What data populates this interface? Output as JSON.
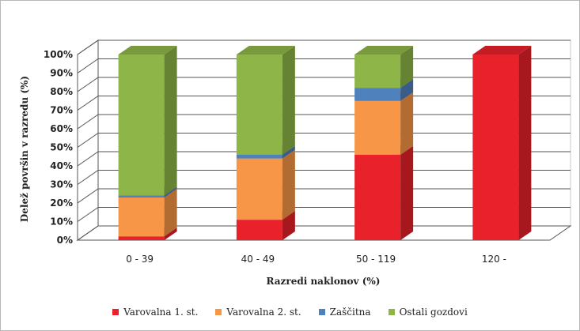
{
  "chart_data": {
    "type": "bar",
    "stacked": true,
    "three_d": true,
    "categories": [
      "0 - 39",
      "40 - 49",
      "50 - 119",
      "120 -"
    ],
    "series": [
      {
        "name": "Varovalna 1. st.",
        "color": "#e8212a",
        "values": [
          2,
          11,
          46,
          100
        ]
      },
      {
        "name": "Varovalna 2. st.",
        "color": "#f79646",
        "values": [
          21,
          33,
          29,
          0
        ]
      },
      {
        "name": "Zaščitna",
        "color": "#4f81bd",
        "values": [
          1,
          2,
          7,
          0
        ]
      },
      {
        "name": "Ostali gozdovi",
        "color": "#8db547",
        "values": [
          76,
          54,
          18,
          0
        ]
      }
    ],
    "xlabel": "Razredi naklonov (%)",
    "ylabel": "Delež površin v razredu (%)",
    "ylim": [
      0,
      100
    ],
    "yticks": [
      "0%",
      "10%",
      "20%",
      "30%",
      "40%",
      "50%",
      "60%",
      "70%",
      "80%",
      "90%",
      "100%"
    ],
    "grid": true,
    "legend_position": "bottom"
  }
}
